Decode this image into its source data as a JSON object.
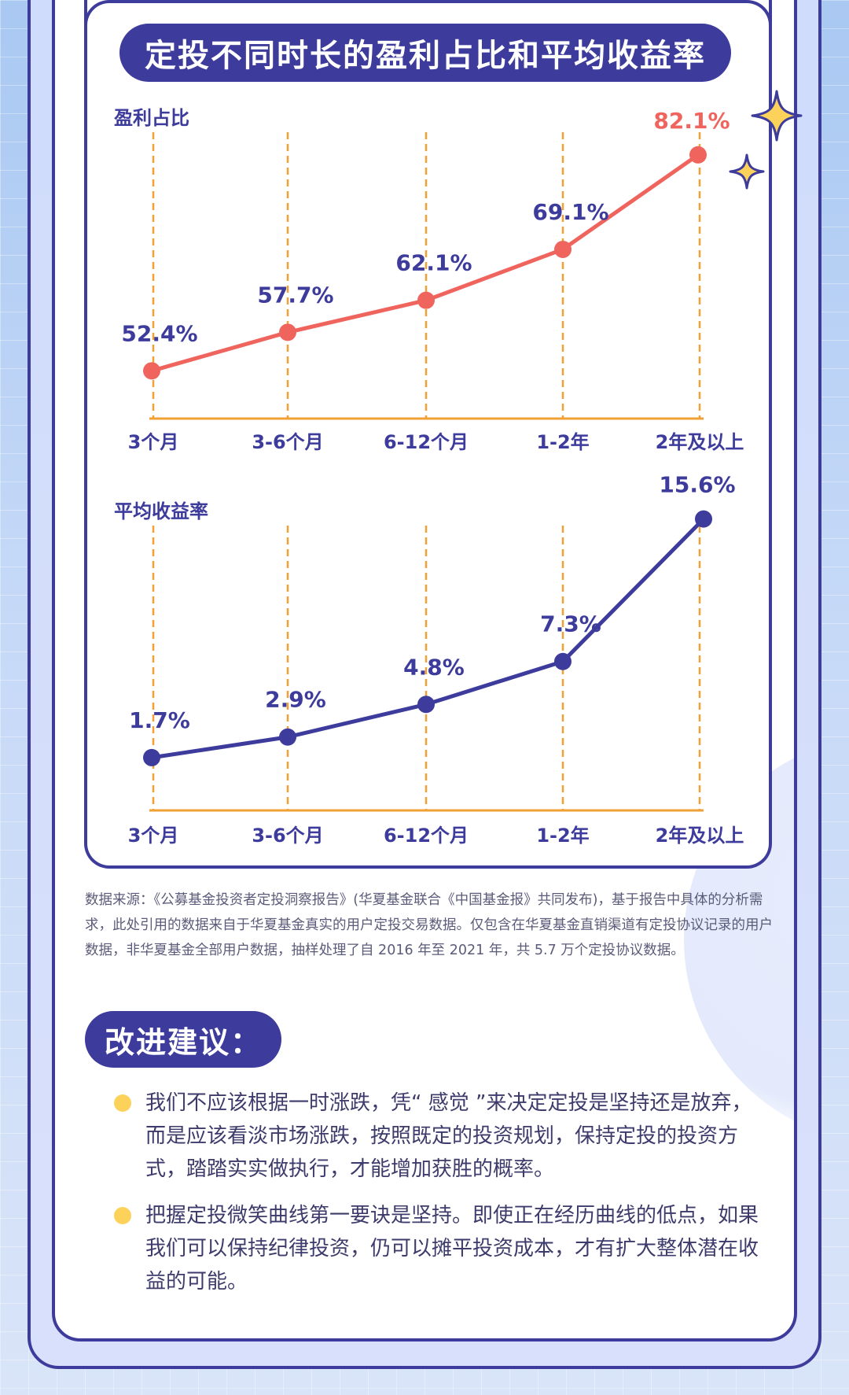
{
  "title": "定投不同时长的盈利占比和平均收益率",
  "chart_data": [
    {
      "type": "line",
      "ylabel": "盈利占比",
      "categories": [
        "3个月",
        "3-6个月",
        "6-12个月",
        "1-2年",
        "2年及以上"
      ],
      "values": [
        52.4,
        57.7,
        62.1,
        69.1,
        82.1
      ],
      "value_labels": [
        "52.4%",
        "57.7%",
        "62.1%",
        "69.1%",
        "82.1%"
      ],
      "ylim": [
        48,
        85
      ],
      "color": "#f0645e",
      "highlight_color": "#f0645e",
      "grid": "vertical-dashed"
    },
    {
      "type": "line",
      "ylabel": "平均收益率",
      "categories": [
        "3个月",
        "3-6个月",
        "6-12个月",
        "1-2年",
        "2年及以上"
      ],
      "values": [
        1.7,
        2.9,
        4.8,
        7.3,
        15.6
      ],
      "value_labels": [
        "1.7%",
        "2.9%",
        "4.8%",
        "7.3%",
        "15.6%"
      ],
      "ylim": [
        0,
        16.5
      ],
      "color": "#3d3b9b",
      "grid": "vertical-dashed"
    }
  ],
  "source_note": "数据来源：《公募基金投资者定投洞察报告》(华夏基金联合《中国基金报》共同发布)，基于报告中具体的分析需求，此处引用的数据来自于华夏基金真实的用户定投交易数据。仅包含在华夏基金直销渠道有定投协议记录的用户数据，非华夏基金全部用户数据，抽样处理了自 2016 年至 2021 年，共 5.7 万个定投协议数据。",
  "advice": {
    "heading": "改进建议：",
    "items": [
      "我们不应该根据一时涨跌，凭“ 感觉 ”来决定定投是坚持还是放弃，而是应该看淡市场涨跌，按照既定的投资规划，保持定投的投资方式，踏踏实实做执行，才能增加获胜的概率。",
      "把握定投微笑曲线第一要诀是坚持。即使正在经历曲线的低点，如果我们可以保持纪律投资，仍可以摊平投资成本，才有扩大整体潜在收益的可能。"
    ]
  },
  "colors": {
    "navy": "#3d3b9b",
    "orange_grid": "#f0a035",
    "red_line": "#f0645e",
    "bullet": "#fcd25a"
  }
}
